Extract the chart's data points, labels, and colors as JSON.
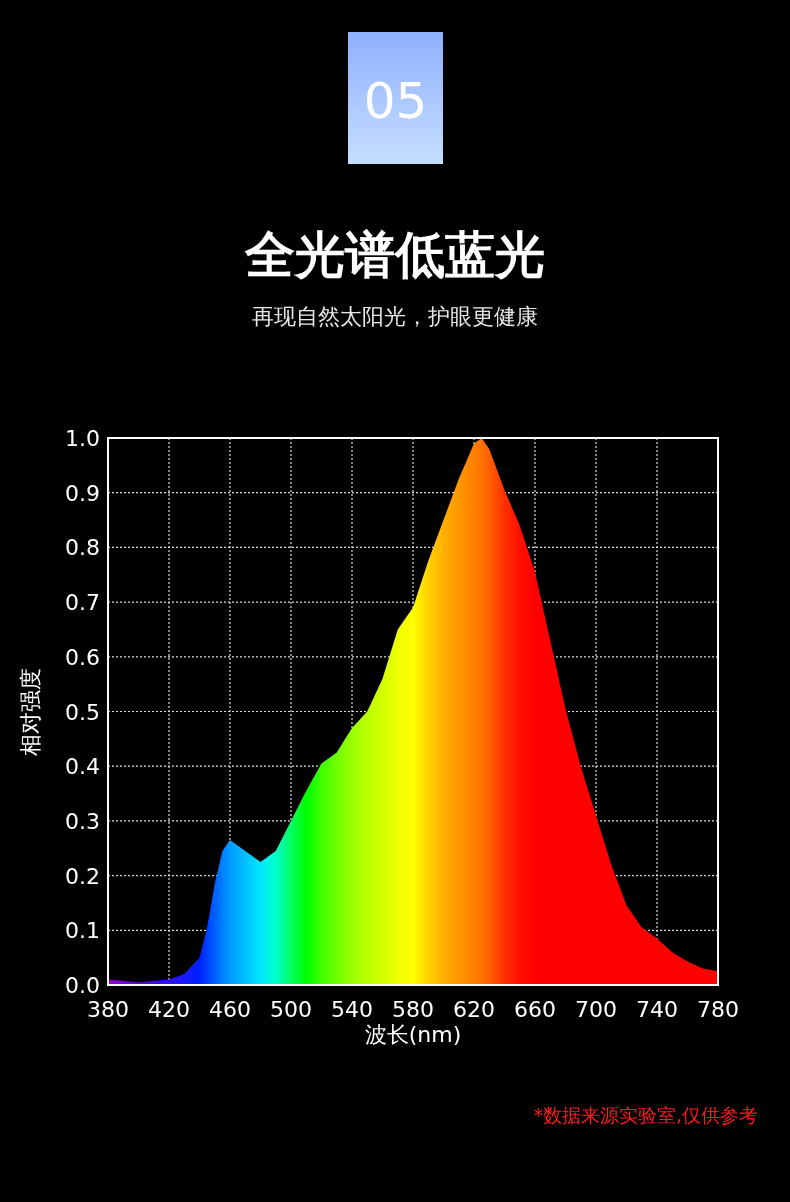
{
  "chart_data": {
    "type": "area",
    "title": "全光谱低蓝光",
    "subtitle": "再现自然太阳光，护眼更健康",
    "xlabel": "波长(nm)",
    "ylabel": "相对强度",
    "annotations": [
      "05",
      "*数据来源实验室,仅供参考"
    ],
    "x": [
      380,
      400,
      420,
      430,
      440,
      445,
      450,
      455,
      460,
      470,
      480,
      490,
      500,
      510,
      520,
      530,
      540,
      550,
      560,
      570,
      580,
      590,
      600,
      610,
      620,
      625,
      630,
      640,
      650,
      660,
      670,
      680,
      690,
      700,
      710,
      720,
      730,
      740,
      750,
      760,
      770,
      780
    ],
    "values": [
      0.01,
      0.005,
      0.01,
      0.02,
      0.05,
      0.105,
      0.185,
      0.245,
      0.265,
      0.245,
      0.225,
      0.245,
      0.3,
      0.355,
      0.405,
      0.425,
      0.47,
      0.5,
      0.56,
      0.65,
      0.69,
      0.775,
      0.85,
      0.925,
      0.99,
      1.0,
      0.98,
      0.905,
      0.84,
      0.755,
      0.63,
      0.505,
      0.4,
      0.31,
      0.22,
      0.146,
      0.105,
      0.085,
      0.06,
      0.043,
      0.03,
      0.025
    ],
    "colors": [
      "#9900cc",
      "#5a00e0",
      "#2a10f0",
      "#1a1aff",
      "#0020ff",
      "#0040ff",
      "#0060ff",
      "#0080ff",
      "#009cff",
      "#00c0ff",
      "#00e8ff",
      "#00ffcc",
      "#00ff60",
      "#00ff00",
      "#40ff00",
      "#70ff00",
      "#99ff00",
      "#bbff00",
      "#d4ff00",
      "#eeff00",
      "#ffff00",
      "#ffd000",
      "#ffb000",
      "#ff9800",
      "#ff8000",
      "#ff7000",
      "#ff6000",
      "#ff3000",
      "#ff1000",
      "#ff0000",
      "#ff0000",
      "#ff0000",
      "#ff0000",
      "#ff0000",
      "#ff0000",
      "#ff0000",
      "#ff0000",
      "#ff0000",
      "#ff0000",
      "#ff0000",
      "#ff0000",
      "#ff0000"
    ],
    "xlim": [
      380,
      780
    ],
    "xticks": [
      380,
      420,
      460,
      500,
      540,
      580,
      620,
      660,
      700,
      740,
      780
    ],
    "ylim": [
      0,
      1
    ],
    "yticks": [
      {
        "value": 0,
        "label": "0.0"
      },
      0.1,
      0.2,
      0.3,
      0.4,
      0.5,
      0.6,
      0.7,
      0.8,
      0.9,
      {
        "value": 1,
        "label": "1.0"
      }
    ],
    "grid": true
  }
}
